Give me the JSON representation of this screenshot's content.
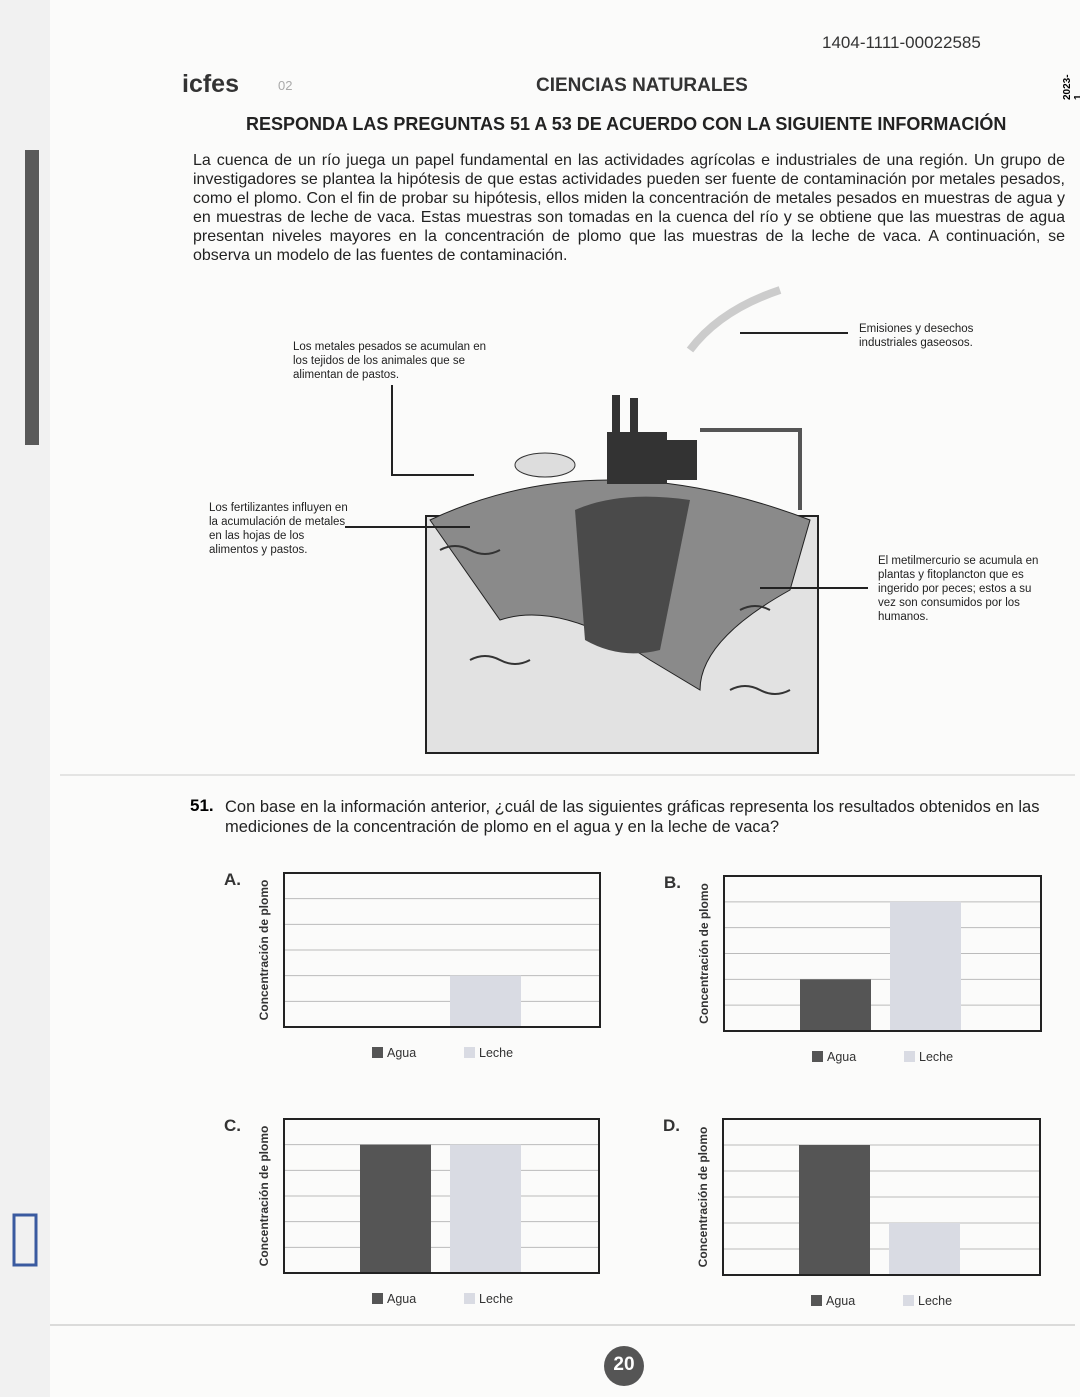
{
  "header": {
    "code": "1404-1111-00022585",
    "brand": "icfes",
    "section_number": "02",
    "subject": "CIENCIAS NATURALES",
    "year": "2023-1"
  },
  "instruction": "RESPONDA LAS PREGUNTAS 51 A 53 DE ACUERDO CON LA SIGUIENTE INFORMACIÓN",
  "context": "La cuenca de un río juega un papel fundamental en las actividades agrícolas e industriales de una región. Un grupo de investigadores se plantea la hipótesis de que estas actividades pueden ser fuente de contaminación por metales pesados, como el plomo. Con el fin de probar su hipótesis, ellos miden la concentración de metales pesados en muestras de agua y en muestras de leche de vaca. Estas muestras son tomadas en la cuenca del río y se obtiene que las muestras de agua presentan niveles mayores en la concentración de plomo que las muestras de la leche de vaca. A continuación, se observa un modelo de las fuentes de contaminación.",
  "diagram": {
    "labels": [
      "Los metales pesados se acumulan en los tejidos de los animales que se alimentan de pastos.",
      "Emisiones y desechos industriales gaseosos.",
      "Los fertilizantes influyen en la acumulación de metales en las hojas de los alimentos y pastos.",
      "El metilmercurio se acumula en plantas y fitoplancton que es ingerido por peces; estos a su vez son consumidos por los humanos."
    ]
  },
  "question": {
    "number": "51.",
    "text": "Con base en la información anterior, ¿cuál de las siguientes gráficas representa los resultados obtenidos en las mediciones de la concentración de plomo en el agua y en la leche de vaca?"
  },
  "chart_data": [
    {
      "type": "bar",
      "option": "A.",
      "ylabel": "Concentración de plomo",
      "categories": [
        "Agua",
        "Leche"
      ],
      "colors": [
        "#555555",
        "#d9dbe3"
      ],
      "values": [
        0,
        2
      ],
      "ylim": [
        0,
        6
      ],
      "gridlines": [
        1,
        2,
        3,
        4,
        5
      ]
    },
    {
      "type": "bar",
      "option": "B.",
      "ylabel": "Concentración de plomo",
      "categories": [
        "Agua",
        "Leche"
      ],
      "colors": [
        "#555555",
        "#d9dbe3"
      ],
      "values": [
        2,
        5
      ],
      "ylim": [
        0,
        6
      ],
      "gridlines": [
        1,
        2,
        3,
        4,
        5
      ]
    },
    {
      "type": "bar",
      "option": "C.",
      "ylabel": "Concentración de plomo",
      "categories": [
        "Agua",
        "Leche"
      ],
      "colors": [
        "#555555",
        "#d9dbe3"
      ],
      "values": [
        5,
        5
      ],
      "ylim": [
        0,
        6
      ],
      "gridlines": [
        1,
        2,
        3,
        4,
        5
      ]
    },
    {
      "type": "bar",
      "option": "D.",
      "ylabel": "Concentración de plomo",
      "categories": [
        "Agua",
        "Leche"
      ],
      "colors": [
        "#555555",
        "#d9dbe3"
      ],
      "values": [
        5,
        2
      ],
      "ylim": [
        0,
        6
      ],
      "gridlines": [
        1,
        2,
        3,
        4,
        5
      ]
    }
  ],
  "page_number": "20"
}
